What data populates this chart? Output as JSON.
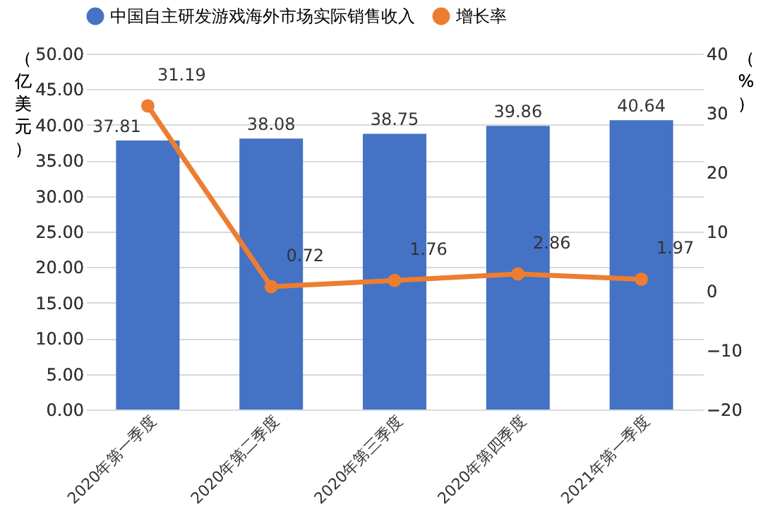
{
  "chart_data": {
    "type": "bar",
    "categories": [
      "2020年第一季度",
      "2020年第二季度",
      "2020年第三季度",
      "2020年第四季度",
      "2021年第一季度"
    ],
    "series": [
      {
        "name": "中国自主研发游戏海外市场实际销售收入",
        "color": "#4472c4",
        "values": [
          37.81,
          38.08,
          38.75,
          39.86,
          40.64
        ]
      },
      {
        "name": "增长率",
        "type": "line",
        "axis": "y2",
        "color": "#ed7d31",
        "marker": "circle",
        "values": [
          31.19,
          0.72,
          1.76,
          2.86,
          1.97
        ]
      }
    ],
    "ylabel": "（亿美元）",
    "y2label": "（%）",
    "ylim": [
      0,
      50
    ],
    "yticks": [
      {
        "value": 0,
        "label": "0.00"
      },
      {
        "value": 5,
        "label": "5.00"
      },
      {
        "value": 10,
        "label": "10.00"
      },
      {
        "value": 15,
        "label": "15.00"
      },
      {
        "value": 20,
        "label": "20.00"
      },
      {
        "value": 25,
        "label": "25.00"
      },
      {
        "value": 30,
        "label": "30.00"
      },
      {
        "value": 35,
        "label": "35.00"
      },
      {
        "value": 40,
        "label": "40.00"
      },
      {
        "value": 45,
        "label": "45.00"
      },
      {
        "value": 50,
        "label": "50.00"
      }
    ],
    "y2lim": [
      -20,
      40
    ],
    "y2ticks": [
      -20,
      -10,
      0,
      10,
      20,
      30,
      40
    ],
    "grid": "y",
    "legend": "top",
    "data_labels": true
  }
}
